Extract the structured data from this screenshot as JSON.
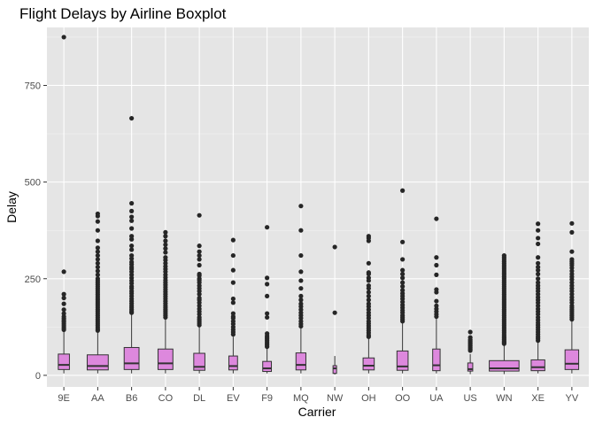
{
  "chart_data": {
    "type": "boxplot",
    "title": "Flight Delays by Airline Boxplot",
    "xlabel": "Carrier",
    "ylabel": "Delay",
    "ylim": [
      -30,
      900
    ],
    "yticks": [
      0,
      250,
      500,
      750
    ],
    "grid": true,
    "colors": {
      "panel": "#e5e5e5",
      "grid_major": "#ffffff",
      "box_fill": "#dd88dd",
      "box_stroke": "#333333",
      "outlier": "#262626"
    },
    "categories": [
      "9E",
      "AA",
      "B6",
      "CO",
      "DL",
      "EV",
      "F9",
      "MQ",
      "NW",
      "OH",
      "OO",
      "UA",
      "US",
      "WN",
      "XE",
      "YV"
    ],
    "box_width_fraction": [
      0.45,
      0.85,
      0.6,
      0.6,
      0.45,
      0.35,
      0.35,
      0.4,
      0.1,
      0.45,
      0.45,
      0.3,
      0.2,
      1.2,
      0.55,
      0.55
    ],
    "stats": [
      {
        "carrier": "9E",
        "q1": 15,
        "median": 27,
        "q3": 55,
        "whisker_low": 5,
        "whisker_high": 115,
        "outliers": [
          875,
          268,
          210,
          200,
          185,
          170,
          160,
          152,
          147,
          142,
          138,
          133,
          128,
          123,
          118
        ]
      },
      {
        "carrier": "AA",
        "q1": 14,
        "median": 24,
        "q3": 53,
        "whisker_low": 5,
        "whisker_high": 112,
        "outliers": [
          418,
          412,
          398,
          375,
          348,
          330,
          320,
          310,
          300,
          290,
          280,
          270,
          260,
          250,
          245,
          240,
          235,
          230,
          225,
          220,
          215,
          210,
          205,
          200,
          195,
          190,
          185,
          180,
          175,
          170,
          165,
          160,
          155,
          150,
          145,
          140,
          135,
          130,
          125,
          120,
          116
        ]
      },
      {
        "carrier": "B6",
        "q1": 15,
        "median": 31,
        "q3": 72,
        "whisker_low": 5,
        "whisker_high": 158,
        "outliers": [
          665,
          445,
          425,
          410,
          400,
          380,
          360,
          352,
          335,
          325,
          310,
          302,
          293,
          287,
          280,
          275,
          268,
          260,
          252,
          245,
          238,
          230,
          225,
          218,
          212,
          205,
          198,
          192,
          186,
          180,
          175,
          170,
          165,
          162
        ]
      },
      {
        "carrier": "CO",
        "q1": 15,
        "median": 31,
        "q3": 68,
        "whisker_low": 5,
        "whisker_high": 145,
        "outliers": [
          370,
          360,
          348,
          338,
          328,
          318,
          305,
          298,
          290,
          282,
          275,
          268,
          260,
          253,
          246,
          240,
          234,
          228,
          222,
          216,
          210,
          204,
          198,
          192,
          186,
          180,
          175,
          170,
          165,
          160,
          155,
          150
        ]
      },
      {
        "carrier": "DL",
        "q1": 13,
        "median": 22,
        "q3": 57,
        "whisker_low": 5,
        "whisker_high": 125,
        "outliers": [
          414,
          335,
          320,
          310,
          300,
          285,
          262,
          258,
          250,
          246,
          240,
          232,
          225,
          218,
          210,
          200,
          195,
          188,
          180,
          172,
          165,
          158,
          150,
          145,
          140,
          135,
          130
        ]
      },
      {
        "carrier": "EV",
        "q1": 14,
        "median": 24,
        "q3": 50,
        "whisker_low": 5,
        "whisker_high": 100,
        "outliers": [
          350,
          310,
          272,
          240,
          198,
          188,
          160,
          152,
          148,
          140,
          133,
          125,
          118,
          112,
          106
        ]
      },
      {
        "carrier": "F9",
        "q1": 10,
        "median": 18,
        "q3": 36,
        "whisker_low": 5,
        "whisker_high": 70,
        "outliers": [
          383,
          252,
          236,
          205,
          160,
          150,
          108,
          102,
          98,
          94,
          90,
          86,
          82,
          78,
          74
        ]
      },
      {
        "carrier": "MQ",
        "q1": 14,
        "median": 27,
        "q3": 58,
        "whisker_low": 5,
        "whisker_high": 122,
        "outliers": [
          438,
          375,
          310,
          268,
          245,
          225,
          205,
          195,
          185,
          178,
          170,
          162,
          155,
          148,
          140,
          133,
          127
        ]
      },
      {
        "carrier": "NW",
        "q1": 5,
        "median": 18,
        "q3": 25,
        "whisker_low": 2,
        "whisker_high": 50,
        "outliers": [
          332,
          162
        ]
      },
      {
        "carrier": "OH",
        "q1": 14,
        "median": 25,
        "q3": 45,
        "whisker_low": 5,
        "whisker_high": 95,
        "outliers": [
          360,
          355,
          348,
          290,
          266,
          262,
          252,
          245,
          232,
          225,
          215,
          205,
          195,
          185,
          178,
          170,
          162,
          155,
          148,
          140,
          134,
          128,
          122,
          116,
          110,
          104,
          100
        ]
      },
      {
        "carrier": "OO",
        "q1": 13,
        "median": 23,
        "q3": 63,
        "whisker_low": 5,
        "whisker_high": 135,
        "outliers": [
          478,
          345,
          300,
          272,
          262,
          252,
          240,
          230,
          220,
          212,
          205,
          198,
          190,
          182,
          175,
          168,
          162,
          155,
          150,
          145,
          140
        ]
      },
      {
        "carrier": "UA",
        "q1": 12,
        "median": 26,
        "q3": 68,
        "whisker_low": 5,
        "whisker_high": 148,
        "outliers": [
          405,
          305,
          285,
          260,
          222,
          215,
          192,
          180,
          172,
          165,
          158,
          152
        ]
      },
      {
        "carrier": "US",
        "q1": 11,
        "median": 16,
        "q3": 32,
        "whisker_low": 3,
        "whisker_high": 55,
        "outliers": [
          112,
          98,
          92,
          88,
          84,
          80,
          76,
          72,
          68,
          64
        ]
      },
      {
        "carrier": "WN",
        "q1": 11,
        "median": 18,
        "q3": 38,
        "whisker_low": 3,
        "whisker_high": 78,
        "outliers": [
          310,
          305,
          300,
          295,
          290,
          285,
          280,
          275,
          270,
          265,
          260,
          255,
          250,
          245,
          240,
          235,
          230,
          225,
          220,
          215,
          210,
          205,
          200,
          195,
          190,
          185,
          180,
          175,
          170,
          165,
          160,
          155,
          150,
          145,
          140,
          135,
          130,
          125,
          120,
          115,
          110,
          105,
          100,
          96,
          92,
          88,
          85,
          82
        ]
      },
      {
        "carrier": "XE",
        "q1": 12,
        "median": 21,
        "q3": 40,
        "whisker_low": 5,
        "whisker_high": 85,
        "outliers": [
          392,
          375,
          355,
          340,
          305,
          290,
          280,
          272,
          262,
          250,
          240,
          232,
          225,
          218,
          210,
          202,
          195,
          188,
          180,
          172,
          165,
          158,
          150,
          143,
          136,
          130,
          124,
          118,
          112,
          106,
          100,
          95,
          90
        ]
      },
      {
        "carrier": "YV",
        "q1": 15,
        "median": 30,
        "q3": 66,
        "whisker_low": 5,
        "whisker_high": 140,
        "outliers": [
          393,
          370,
          320,
          300,
          295,
          290,
          285,
          278,
          270,
          262,
          255,
          248,
          240,
          232,
          225,
          218,
          210,
          202,
          195,
          188,
          180,
          175,
          170,
          165,
          160,
          155,
          150,
          145
        ]
      }
    ]
  }
}
